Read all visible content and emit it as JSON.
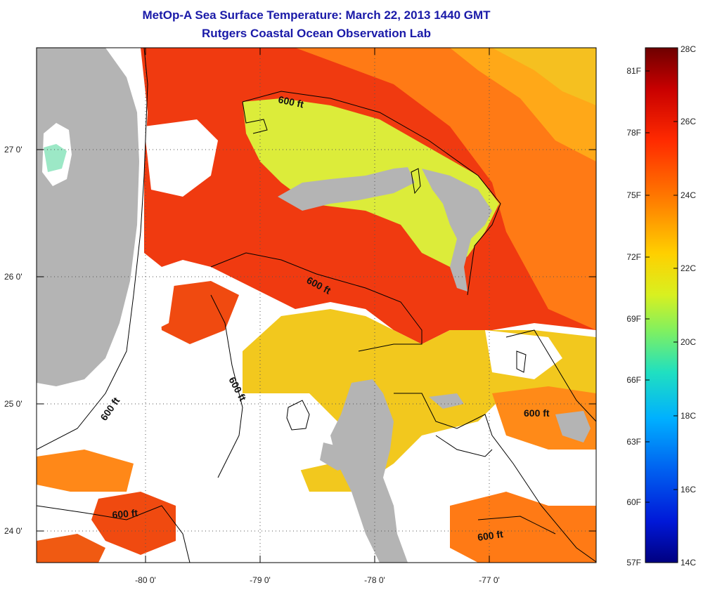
{
  "title": "MetOp-A Sea Surface Temperature:  March 22, 2013 1440 GMT",
  "subtitle": "Rutgers Coastal Ocean Observation Lab",
  "lat_ticks": [
    "27 0'",
    "26 0'",
    "25 0'",
    "24 0'"
  ],
  "lon_ticks": [
    "-80 0'",
    "-79 0'",
    "-78 0'",
    "-77 0'"
  ],
  "contour_label": "600 ft",
  "colorbar": {
    "fahrenheit": [
      "81F",
      "78F",
      "75F",
      "72F",
      "69F",
      "66F",
      "63F",
      "60F",
      "57F"
    ],
    "celsius": [
      "28C",
      "26C",
      "24C",
      "22C",
      "20C",
      "18C",
      "16C",
      "14C"
    ],
    "colors": [
      "#7a0000",
      "#c00000",
      "#ff2000",
      "#ff6a00",
      "#ffaa00",
      "#f5f000",
      "#a8f040",
      "#40e0a0",
      "#00c8ff",
      "#0070ff",
      "#0020e0",
      "#00008a"
    ]
  },
  "legend_colors": {
    "land": "#b4b4b4",
    "cloud": "#ffffff",
    "warm_water": "#f04010",
    "mid_water": "#ff8a10",
    "cool_water": "#f0d020",
    "bank_water": "#d8f040"
  }
}
